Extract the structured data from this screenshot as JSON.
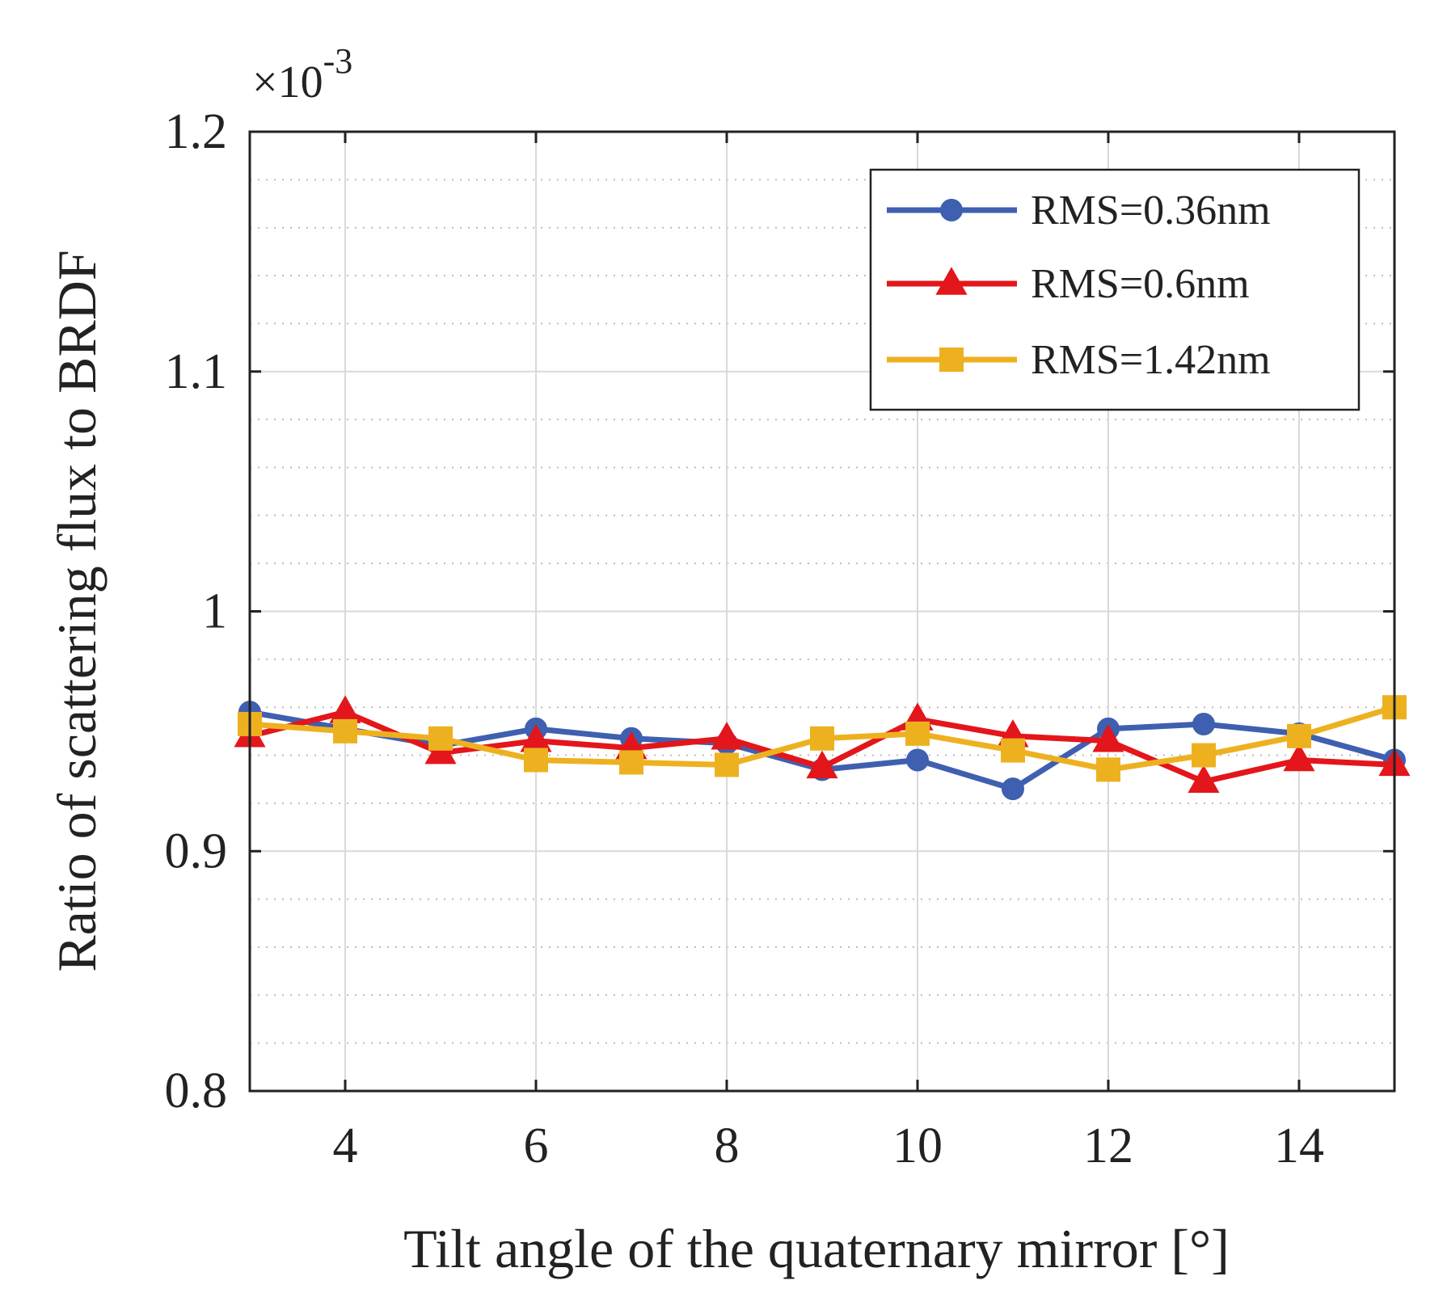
{
  "chart_data": {
    "type": "line",
    "xlabel": "Tilt angle of the quaternary mirror  [°]",
    "ylabel": "Ratio of scattering flux to BRDF",
    "y_exponent": {
      "base": "×10",
      "power": "-3"
    },
    "xlim": [
      3,
      15
    ],
    "ylim": [
      0.8,
      1.2
    ],
    "x_ticks": [
      4,
      6,
      8,
      10,
      12,
      14
    ],
    "y_ticks": [
      0.8,
      0.9,
      1,
      1.1,
      1.2
    ],
    "y_tick_labels": [
      "0.8",
      "0.9",
      "1",
      "1.1",
      "1.2"
    ],
    "grid": true,
    "minor_grid": true,
    "legend_position": "top-right",
    "x": [
      3,
      4,
      5,
      6,
      7,
      8,
      9,
      10,
      11,
      12,
      13,
      14,
      15
    ],
    "series": [
      {
        "name": "RMS=0.36nm",
        "color": "#3f5fb0",
        "marker": "circle",
        "values": [
          0.958,
          0.951,
          0.944,
          0.951,
          0.947,
          0.945,
          0.934,
          0.938,
          0.926,
          0.951,
          0.953,
          0.949,
          0.938
        ]
      },
      {
        "name": "RMS=0.6nm",
        "color": "#e3161b",
        "marker": "triangle",
        "values": [
          0.948,
          0.958,
          0.941,
          0.946,
          0.943,
          0.947,
          0.935,
          0.955,
          0.948,
          0.946,
          0.929,
          0.938,
          0.936
        ]
      },
      {
        "name": "RMS=1.42nm",
        "color": "#edb120",
        "marker": "square",
        "values": [
          0.953,
          0.95,
          0.947,
          0.938,
          0.937,
          0.936,
          0.947,
          0.949,
          0.942,
          0.934,
          0.94,
          0.948,
          0.96
        ]
      }
    ]
  }
}
